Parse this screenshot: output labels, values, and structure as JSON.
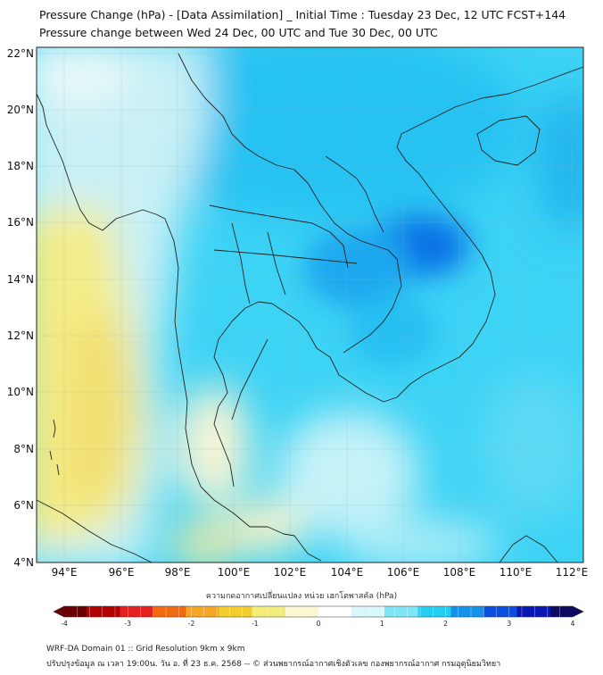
{
  "title": {
    "line1": "Pressure Change (hPa) - [Data Assimilation] _ Initial Time : Tuesday 23 Dec, 12 UTC FCST+144",
    "line2": "Pressure change between Wed 24 Dec, 00 UTC and Tue 30 Dec, 00 UTC"
  },
  "map": {
    "lat_labels": [
      "22°N",
      "20°N",
      "18°N",
      "16°N",
      "14°N",
      "12°N",
      "10°N",
      "8°N",
      "6°N",
      "4°N"
    ],
    "lon_labels": [
      "94°E",
      "96°E",
      "98°E",
      "100°E",
      "102°E",
      "104°E",
      "106°E",
      "108°E",
      "110°E",
      "112°E"
    ],
    "lat_range": [
      4,
      22.3
    ],
    "lon_range": [
      93.1,
      112.6
    ]
  },
  "colorbar": {
    "title": "ความกดอากาศเปลี่ยนแปลง หน่วย เฮกโตพาสคัล (hPa)",
    "tick_labels": [
      "-4",
      "-3",
      "-2",
      "-1",
      "0",
      "1",
      "2",
      "3",
      "4"
    ],
    "range": [
      -4,
      4
    ],
    "colors": [
      "#6b0000",
      "#b30000",
      "#e62020",
      "#f26a10",
      "#f5a623",
      "#f2cf2e",
      "#f4ec78",
      "#fbf7d0",
      "#ffffff",
      "#d9f7fb",
      "#7fe6f7",
      "#26cdf3",
      "#1593ec",
      "#0a4fe0",
      "#0a17b0",
      "#0d0a60"
    ]
  },
  "footer": {
    "line1": "WRF-DA Domain 01 :: Grid Resolution 9km x 9km",
    "line2": "ปรับปรุงข้อมูล ณ เวลา 19:00น. วัน อ. ที่ 23 ธ.ค. 2568 -- © ส่วนพยากรณ์อากาศเชิงตัวเลข กองพยากรณ์อากาศ กรมอุตุนิยมวิทยา"
  }
}
